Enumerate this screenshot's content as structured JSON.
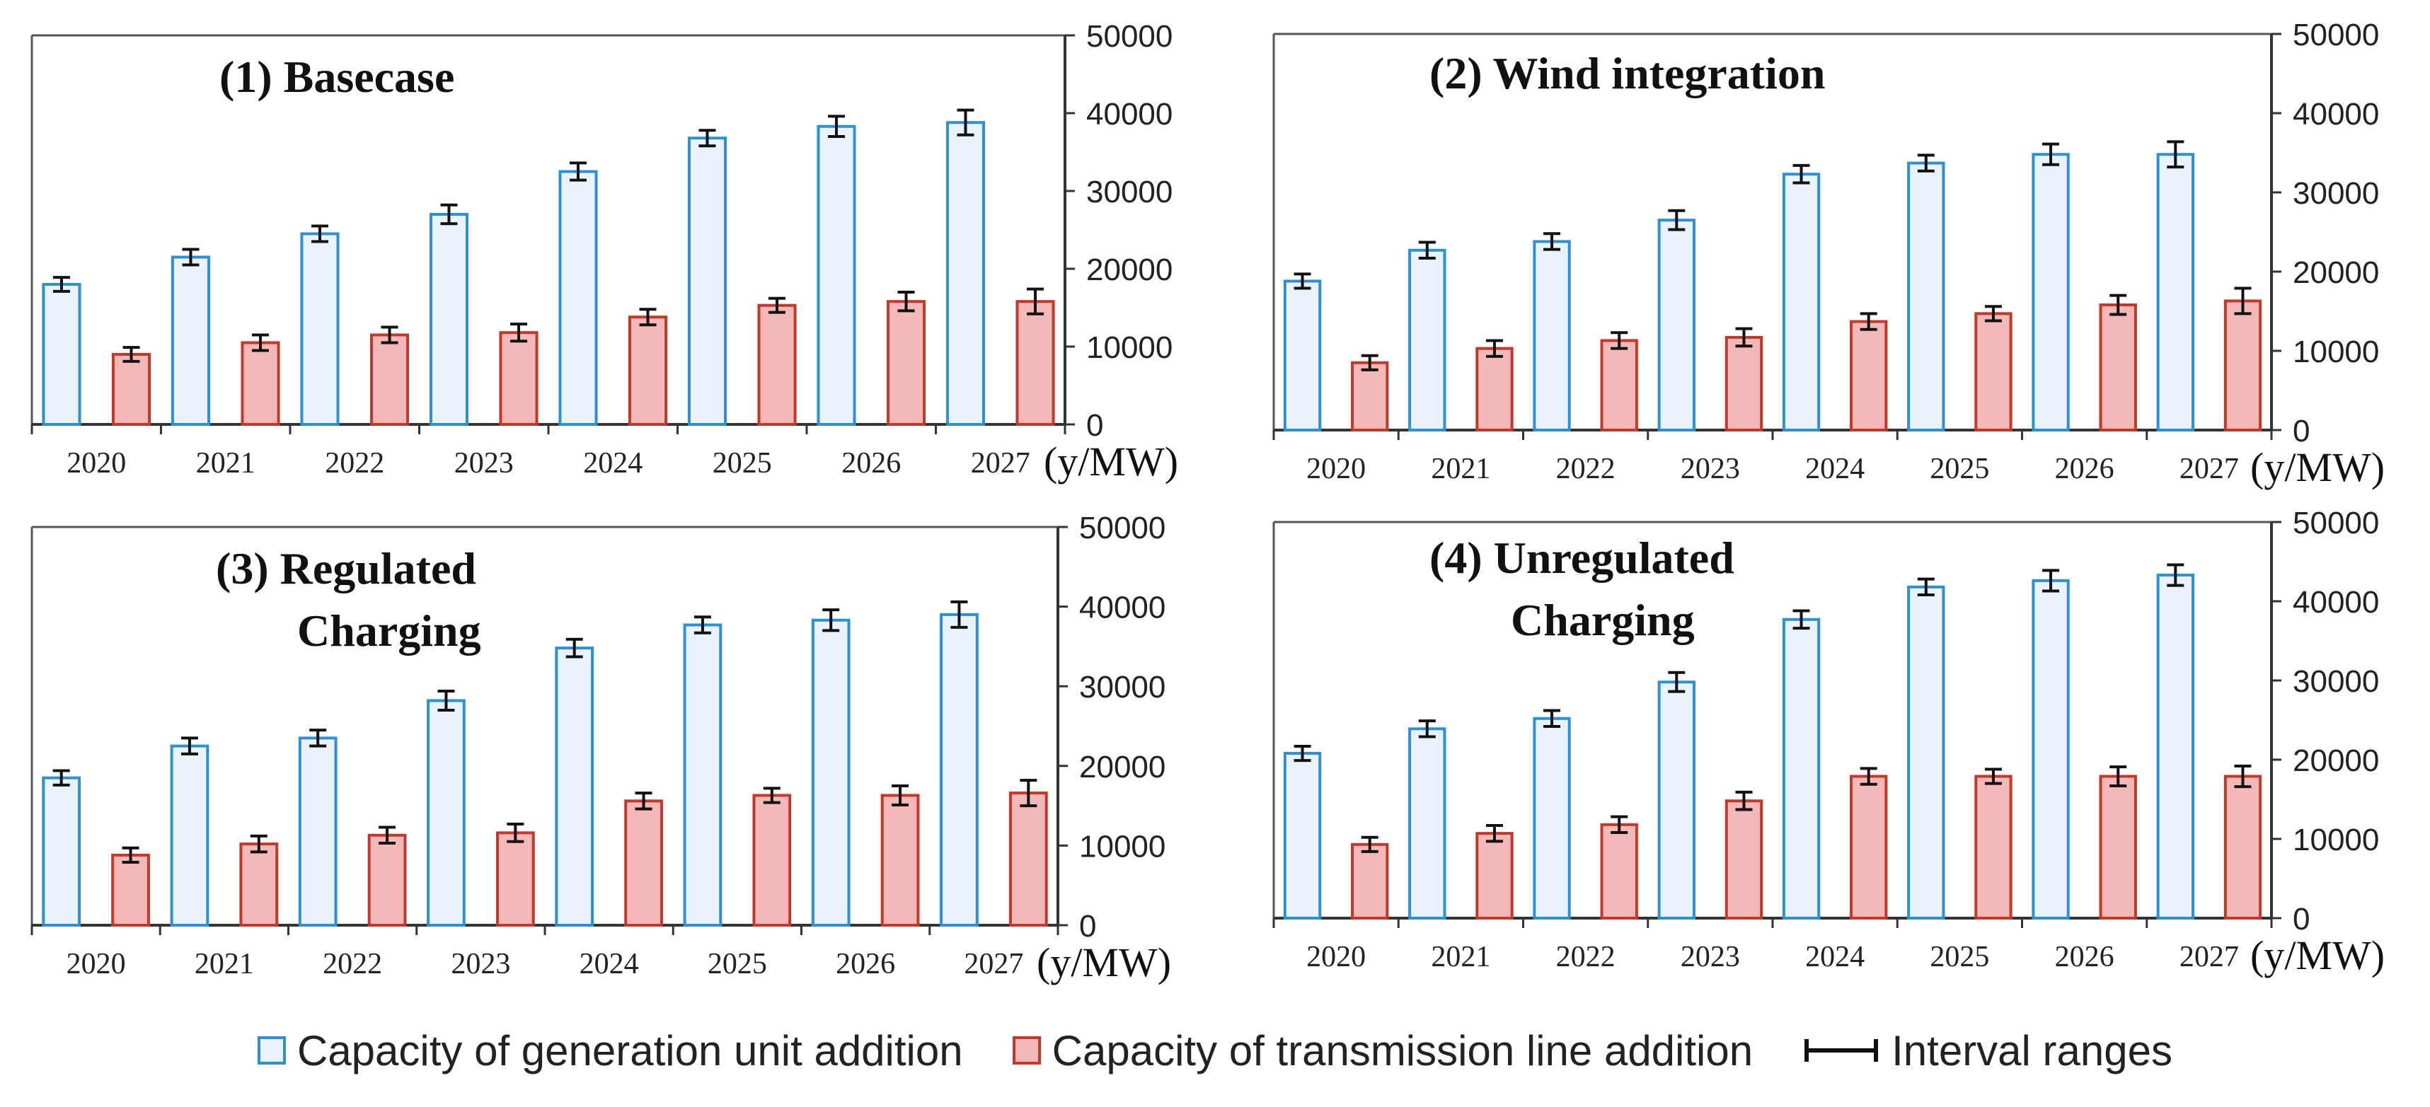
{
  "chart_data": [
    {
      "type": "bar",
      "title": "(1) Basecase",
      "categories": [
        "2020",
        "2021",
        "2022",
        "2023",
        "2024",
        "2025",
        "2026",
        "2027"
      ],
      "unit_label": "(y/MW)",
      "ylim": [
        0,
        50000
      ],
      "yticks": [
        "0",
        "10000",
        "20000",
        "30000",
        "40000",
        "50000"
      ],
      "series": [
        {
          "name": "Capacity of generation unit addition",
          "values": [
            18000,
            21500,
            24500,
            27000,
            32500,
            36800,
            38300,
            38800
          ],
          "err": [
            900,
            1000,
            1000,
            1200,
            1100,
            1000,
            1300,
            1600
          ]
        },
        {
          "name": "Capacity of transmission line addition",
          "values": [
            9000,
            10500,
            11500,
            11800,
            13800,
            15300,
            15800,
            15800
          ],
          "err": [
            900,
            1000,
            1000,
            1100,
            1000,
            900,
            1200,
            1600
          ]
        }
      ]
    },
    {
      "type": "bar",
      "title": "(2) Wind integration",
      "categories": [
        "2020",
        "2021",
        "2022",
        "2023",
        "2024",
        "2025",
        "2026",
        "2027"
      ],
      "unit_label": "(y/MW)",
      "ylim": [
        0,
        50000
      ],
      "yticks": [
        "0",
        "10000",
        "20000",
        "30000",
        "40000",
        "50000"
      ],
      "series": [
        {
          "name": "Capacity of generation unit addition",
          "values": [
            18800,
            22700,
            23800,
            26500,
            32300,
            33700,
            34800,
            34800
          ],
          "err": [
            900,
            1000,
            1000,
            1200,
            1100,
            1000,
            1300,
            1600
          ]
        },
        {
          "name": "Capacity of transmission line addition",
          "values": [
            8500,
            10300,
            11300,
            11700,
            13700,
            14700,
            15800,
            16300
          ],
          "err": [
            900,
            1000,
            1000,
            1100,
            1000,
            900,
            1200,
            1600
          ]
        }
      ]
    },
    {
      "type": "bar",
      "title": "(3) Regulated\nCharging",
      "categories": [
        "2020",
        "2021",
        "2022",
        "2023",
        "2024",
        "2025",
        "2026",
        "2027"
      ],
      "unit_label": "(y/MW)",
      "ylim": [
        0,
        50000
      ],
      "yticks": [
        "0",
        "10000",
        "20000",
        "30000",
        "40000",
        "50000"
      ],
      "series": [
        {
          "name": "Capacity of generation unit addition",
          "values": [
            18500,
            22500,
            23500,
            28200,
            34800,
            37700,
            38300,
            39000
          ],
          "err": [
            900,
            1000,
            1000,
            1200,
            1100,
            1000,
            1300,
            1600
          ]
        },
        {
          "name": "Capacity of transmission line addition",
          "values": [
            8800,
            10200,
            11300,
            11600,
            15600,
            16300,
            16300,
            16600
          ],
          "err": [
            900,
            1000,
            1000,
            1100,
            1000,
            900,
            1200,
            1600
          ]
        }
      ]
    },
    {
      "type": "bar",
      "title": "(4) Unregulated\nCharging",
      "categories": [
        "2020",
        "2021",
        "2022",
        "2023",
        "2024",
        "2025",
        "2026",
        "2027"
      ],
      "unit_label": "(y/MW)",
      "ylim": [
        0,
        50000
      ],
      "yticks": [
        "0",
        "10000",
        "20000",
        "30000",
        "40000",
        "50000"
      ],
      "series": [
        {
          "name": "Capacity of generation unit addition",
          "values": [
            20800,
            23900,
            25200,
            29800,
            37700,
            41800,
            42600,
            43300
          ],
          "err": [
            900,
            1000,
            1000,
            1200,
            1100,
            1000,
            1300,
            1300
          ]
        },
        {
          "name": "Capacity of transmission line addition",
          "values": [
            9300,
            10700,
            11800,
            14800,
            17900,
            17900,
            17900,
            17900
          ],
          "err": [
            900,
            1000,
            1000,
            1100,
            1000,
            900,
            1200,
            1300
          ]
        }
      ]
    }
  ],
  "legend": {
    "generation": "Capacity of generation unit addition",
    "transmission": "Capacity of transmission line addition",
    "interval": "Interval ranges"
  },
  "colors": {
    "gen_fill": "#eaf3fc",
    "gen_edge": "#2e8fd1",
    "trans_fill": "#f4b8b8",
    "trans_edge": "#c0392b",
    "axis": "#333333",
    "frame": "#555555"
  }
}
